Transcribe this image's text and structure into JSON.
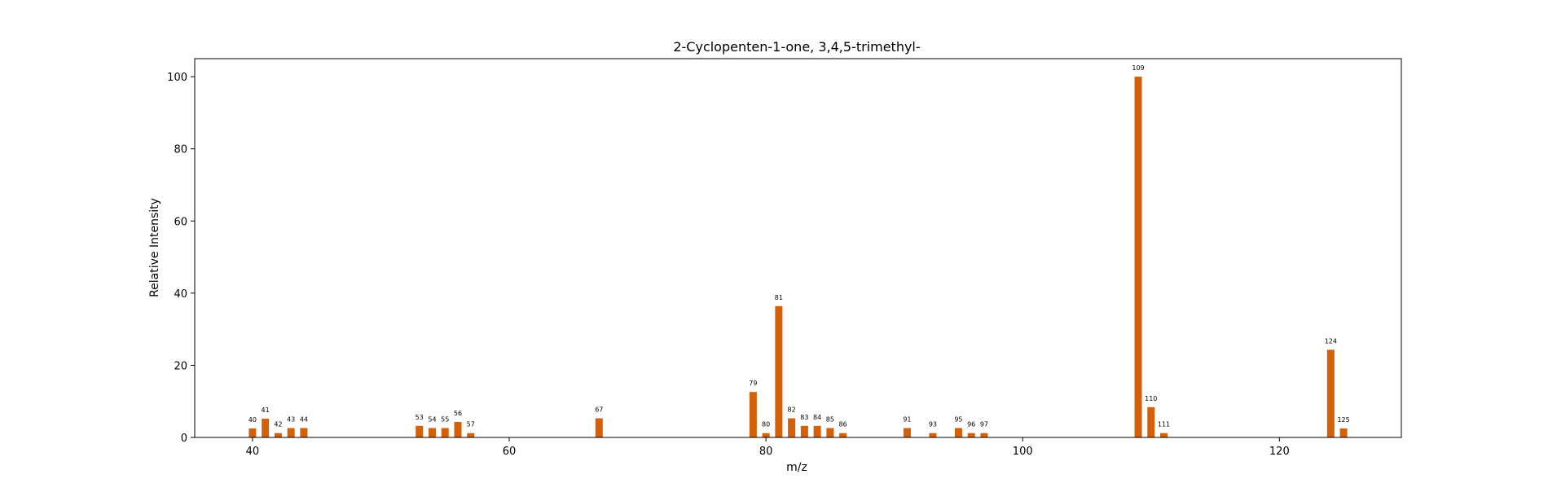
{
  "chart_data": {
    "type": "bar",
    "title": "2-Cyclopenten-1-one, 3,4,5-trimethyl-",
    "xlabel": "m/z",
    "ylabel": "Relative Intensity",
    "xlim": [
      35.5,
      129.5
    ],
    "ylim": [
      0,
      105
    ],
    "xticks": [
      40,
      60,
      80,
      100,
      120
    ],
    "yticks": [
      0,
      20,
      40,
      60,
      80,
      100
    ],
    "grid": false,
    "bar_color": "#D4600A",
    "data": [
      {
        "mz": 40,
        "label": "40",
        "intensity": 2.5
      },
      {
        "mz": 41,
        "label": "41",
        "intensity": 5.2
      },
      {
        "mz": 42,
        "label": "42",
        "intensity": 1.2
      },
      {
        "mz": 43,
        "label": "43",
        "intensity": 2.6
      },
      {
        "mz": 44,
        "label": "44",
        "intensity": 2.6
      },
      {
        "mz": 53,
        "label": "53",
        "intensity": 3.2
      },
      {
        "mz": 54,
        "label": "54",
        "intensity": 2.6
      },
      {
        "mz": 55,
        "label": "55",
        "intensity": 2.6
      },
      {
        "mz": 56,
        "label": "56",
        "intensity": 4.3
      },
      {
        "mz": 57,
        "label": "57",
        "intensity": 1.2
      },
      {
        "mz": 67,
        "label": "67",
        "intensity": 5.3
      },
      {
        "mz": 79,
        "label": "79",
        "intensity": 12.6
      },
      {
        "mz": 80,
        "label": "80",
        "intensity": 1.2
      },
      {
        "mz": 81,
        "label": "81",
        "intensity": 36.4
      },
      {
        "mz": 82,
        "label": "82",
        "intensity": 5.3
      },
      {
        "mz": 83,
        "label": "83",
        "intensity": 3.2
      },
      {
        "mz": 84,
        "label": "84",
        "intensity": 3.2
      },
      {
        "mz": 85,
        "label": "85",
        "intensity": 2.6
      },
      {
        "mz": 86,
        "label": "86",
        "intensity": 1.2
      },
      {
        "mz": 91,
        "label": "91",
        "intensity": 2.6
      },
      {
        "mz": 93,
        "label": "93",
        "intensity": 1.2
      },
      {
        "mz": 95,
        "label": "95",
        "intensity": 2.6
      },
      {
        "mz": 96,
        "label": "96",
        "intensity": 1.2
      },
      {
        "mz": 97,
        "label": "97",
        "intensity": 1.2
      },
      {
        "mz": 109,
        "label": "109",
        "intensity": 100
      },
      {
        "mz": 110,
        "label": "110",
        "intensity": 8.4
      },
      {
        "mz": 111,
        "label": "111",
        "intensity": 1.2
      },
      {
        "mz": 124,
        "label": "124",
        "intensity": 24.3
      },
      {
        "mz": 125,
        "label": "125",
        "intensity": 2.5
      }
    ]
  }
}
